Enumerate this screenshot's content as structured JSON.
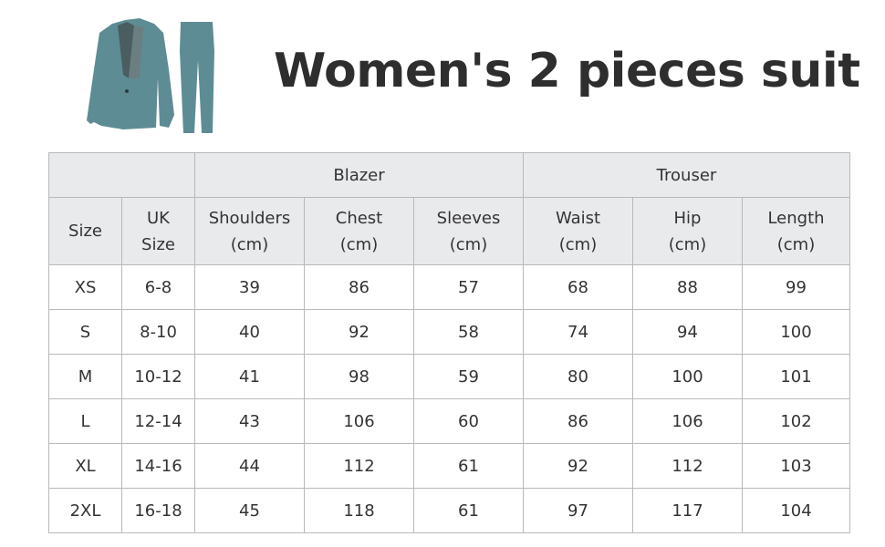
{
  "title": "Women's 2 pieces suit",
  "product_image": {
    "icon": "womens-suit-blazer-and-trouser",
    "color": "#5e8c94"
  },
  "table": {
    "groups": {
      "blazer": "Blazer",
      "trouser": "Trouser"
    },
    "columns": [
      {
        "l1": "Size",
        "l2": ""
      },
      {
        "l1": "UK",
        "l2": "Size"
      },
      {
        "l1": "Shoulders",
        "l2": "(cm)"
      },
      {
        "l1": "Chest",
        "l2": "(cm)"
      },
      {
        "l1": "Sleeves",
        "l2": "(cm)"
      },
      {
        "l1": "Waist",
        "l2": "(cm)"
      },
      {
        "l1": "Hip",
        "l2": "(cm)"
      },
      {
        "l1": "Length",
        "l2": "(cm)"
      }
    ],
    "rows": [
      [
        "XS",
        "6-8",
        "39",
        "86",
        "57",
        "68",
        "88",
        "99"
      ],
      [
        "S",
        "8-10",
        "40",
        "92",
        "58",
        "74",
        "94",
        "100"
      ],
      [
        "M",
        "10-12",
        "41",
        "98",
        "59",
        "80",
        "100",
        "101"
      ],
      [
        "L",
        "12-14",
        "43",
        "106",
        "60",
        "86",
        "106",
        "102"
      ],
      [
        "XL",
        "14-16",
        "44",
        "112",
        "61",
        "92",
        "112",
        "103"
      ],
      [
        "2XL",
        "16-18",
        "45",
        "118",
        "61",
        "97",
        "117",
        "104"
      ]
    ]
  }
}
